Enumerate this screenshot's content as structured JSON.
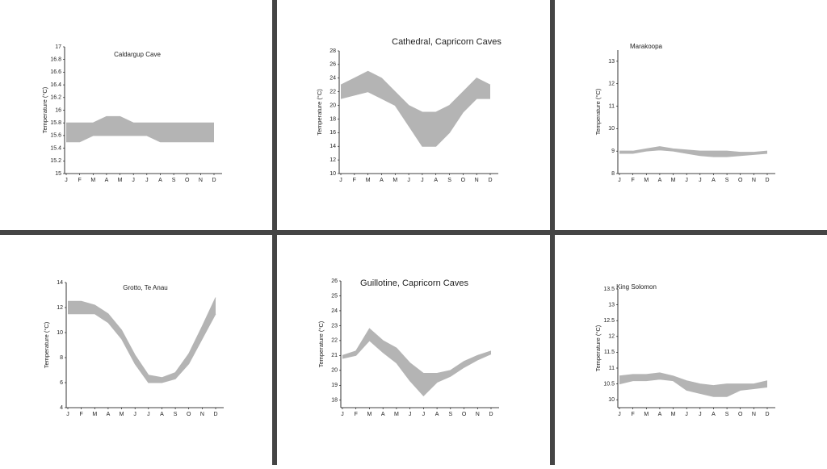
{
  "chart_data": [
    {
      "type": "band",
      "title": "Caldargup Cave",
      "y_label": "Temperature (°C)",
      "categories": [
        "J",
        "F",
        "M",
        "A",
        "M",
        "J",
        "J",
        "A",
        "S",
        "O",
        "N",
        "D"
      ],
      "series": [
        {
          "color": "#b4b4b4",
          "values": [
            15.5,
            15.5,
            15.6,
            15.6,
            15.6,
            15.6,
            15.6,
            15.5,
            15.5,
            15.5,
            15.5,
            15.5
          ]
        },
        {
          "color": "#b4b4b4",
          "values": [
            15.8,
            15.8,
            15.8,
            15.9,
            15.9,
            15.8,
            15.8,
            15.8,
            15.8,
            15.8,
            15.8,
            15.8
          ]
        }
      ],
      "ylim": [
        15,
        17
      ],
      "yticks": [
        15,
        15.2,
        15.4,
        15.6,
        15.8,
        16,
        16.2,
        16.4,
        16.6,
        16.8,
        17
      ]
    },
    {
      "type": "band",
      "title": "Cathedral, Capricorn Caves",
      "y_label": "Temperature (°C)",
      "categories": [
        "J",
        "F",
        "M",
        "A",
        "M",
        "J",
        "J",
        "A",
        "S",
        "O",
        "N",
        "D"
      ],
      "series": [
        {
          "color": "#b4b4b4",
          "values": [
            21,
            21.5,
            22,
            21,
            20,
            17,
            14,
            14,
            16,
            19,
            21,
            21
          ]
        },
        {
          "color": "#b4b4b4",
          "values": [
            23,
            24,
            25,
            24,
            22,
            20,
            19,
            19,
            20,
            22,
            24,
            23
          ]
        }
      ],
      "ylim": [
        10,
        28
      ],
      "yticks": [
        10,
        12,
        14,
        16,
        18,
        20,
        22,
        24,
        26,
        28
      ]
    },
    {
      "type": "band",
      "title": "Marakoopa",
      "y_label": "Temperature (°C)",
      "categories": [
        "J",
        "F",
        "M",
        "A",
        "M",
        "J",
        "J",
        "A",
        "S",
        "O",
        "N",
        "D"
      ],
      "series": [
        {
          "color": "#b4b4b4",
          "values": [
            8.9,
            8.9,
            9.0,
            9.05,
            9.0,
            8.9,
            8.8,
            8.75,
            8.75,
            8.8,
            8.85,
            8.9
          ]
        },
        {
          "color": "#b4b4b4",
          "values": [
            9.0,
            9.0,
            9.1,
            9.2,
            9.1,
            9.05,
            9.0,
            9.0,
            9.0,
            8.95,
            8.95,
            9.0
          ]
        }
      ],
      "ylim": [
        8,
        13.5
      ],
      "yticks": [
        8,
        9,
        10,
        11,
        12,
        13
      ]
    },
    {
      "type": "band",
      "title": "Grotto, Te Anau",
      "y_label": "Temperature (°C)",
      "categories": [
        "J",
        "F",
        "M",
        "A",
        "M",
        "J",
        "J",
        "A",
        "S",
        "O",
        "N",
        "D"
      ],
      "series": [
        {
          "color": "#b4b4b4",
          "values": [
            11.5,
            11.5,
            11.5,
            10.8,
            9.5,
            7.5,
            6.0,
            6.0,
            6.3,
            7.5,
            9.5,
            11.5
          ]
        },
        {
          "color": "#b4b4b4",
          "values": [
            12.5,
            12.5,
            12.2,
            11.5,
            10.2,
            8.2,
            6.6,
            6.4,
            6.8,
            8.3,
            10.5,
            12.8
          ]
        }
      ],
      "ylim": [
        4,
        14
      ],
      "yticks": [
        4,
        6,
        8,
        10,
        12,
        14
      ]
    },
    {
      "type": "band",
      "title": "Guillotine, Capricorn Caves",
      "y_label": "Temperature (°C)",
      "categories": [
        "J",
        "F",
        "M",
        "A",
        "M",
        "J",
        "J",
        "A",
        "S",
        "O",
        "N",
        "D"
      ],
      "series": [
        {
          "color": "#b4b4b4",
          "values": [
            20.8,
            21.0,
            22.0,
            21.2,
            20.5,
            19.3,
            18.3,
            19.2,
            19.6,
            20.2,
            20.7,
            21.1
          ]
        },
        {
          "color": "#b4b4b4",
          "values": [
            21.0,
            21.3,
            22.8,
            22.0,
            21.5,
            20.5,
            19.8,
            19.8,
            20.0,
            20.6,
            21.0,
            21.3
          ]
        }
      ],
      "ylim": [
        17.5,
        26
      ],
      "yticks": [
        18,
        19,
        20,
        21,
        22,
        23,
        24,
        25,
        26
      ]
    },
    {
      "type": "band",
      "title": "King Solomon",
      "y_label": "Temperature (°C)",
      "categories": [
        "J",
        "F",
        "M",
        "A",
        "M",
        "J",
        "J",
        "A",
        "S",
        "O",
        "N",
        "D"
      ],
      "series": [
        {
          "color": "#b4b4b4",
          "values": [
            10.5,
            10.6,
            10.6,
            10.65,
            10.6,
            10.3,
            10.2,
            10.1,
            10.1,
            10.3,
            10.35,
            10.4
          ]
        },
        {
          "color": "#b4b4b4",
          "values": [
            10.75,
            10.8,
            10.8,
            10.85,
            10.75,
            10.6,
            10.5,
            10.45,
            10.5,
            10.5,
            10.5,
            10.6
          ]
        }
      ],
      "ylim": [
        9.75,
        13.5
      ],
      "yticks": [
        10,
        10.5,
        11,
        11.5,
        12,
        12.5,
        13,
        13.5
      ]
    }
  ]
}
